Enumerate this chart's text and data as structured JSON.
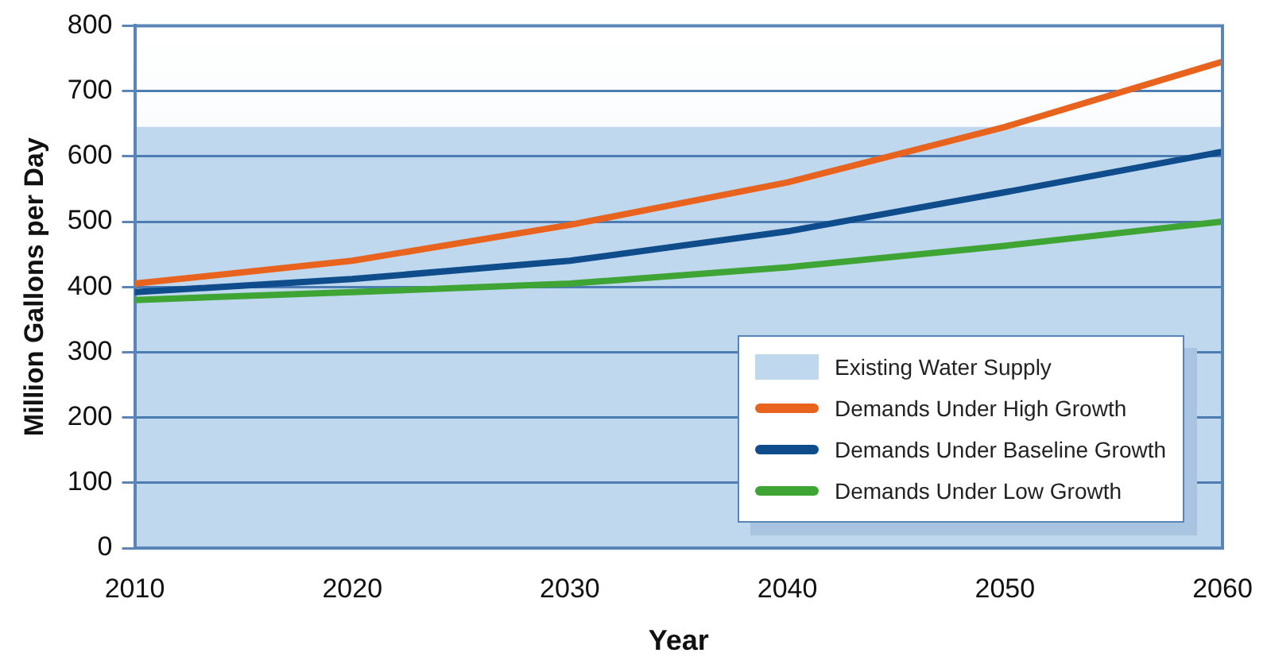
{
  "chart_data": {
    "type": "line",
    "xlabel": "Year",
    "ylabel": "Million Gallons per Day",
    "x": [
      2010,
      2020,
      2030,
      2040,
      2050,
      2060
    ],
    "xlim": [
      2010,
      2060
    ],
    "xticks": [
      2010,
      2020,
      2030,
      2040,
      2050,
      2060
    ],
    "ylim": [
      0,
      800
    ],
    "yticks": [
      0,
      100,
      200,
      300,
      400,
      500,
      600,
      700,
      800
    ],
    "series": [
      {
        "name": "Demands Under High Growth",
        "color": "#e8641e",
        "values": [
          405,
          440,
          495,
          560,
          645,
          745
        ]
      },
      {
        "name": "Demands Under Baseline Growth",
        "color": "#0e4c8c",
        "values": [
          392,
          412,
          440,
          485,
          545,
          607
        ]
      },
      {
        "name": "Demands Under Low Growth",
        "color": "#3ea535",
        "values": [
          380,
          392,
          405,
          430,
          463,
          500
        ]
      }
    ],
    "bands": [
      {
        "axis": "y",
        "from": 0,
        "to": 645,
        "label": "Existing Water Supply",
        "color": "#c0d8ee"
      }
    ],
    "grid": "y",
    "legend": "bottom right",
    "marker": "none",
    "line_style": "solid"
  }
}
